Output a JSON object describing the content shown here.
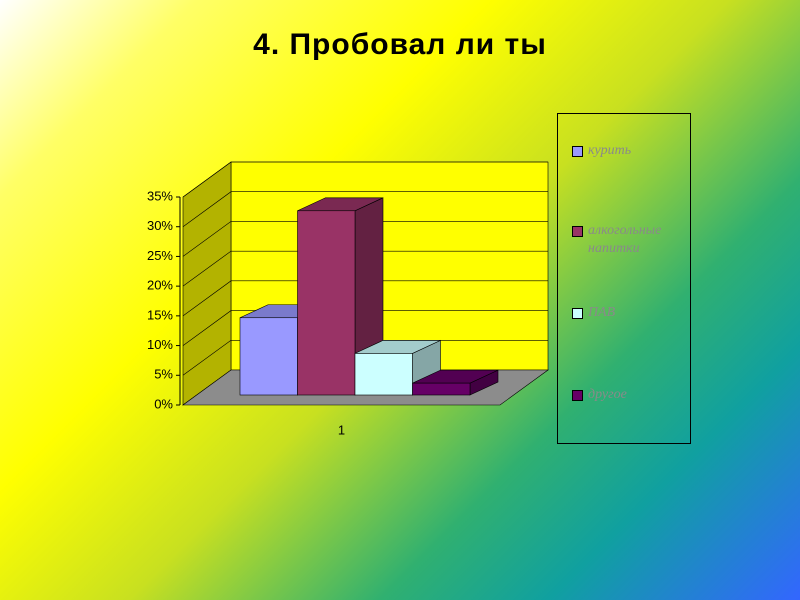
{
  "chart_data": {
    "type": "bar3d",
    "title": "4. Пробовал ли ты",
    "categories": [
      "1"
    ],
    "series": [
      {
        "name": "курить",
        "color": "#9999ff",
        "values": [
          13
        ]
      },
      {
        "name": "алкогольные напитки",
        "color": "#993366",
        "values": [
          31
        ]
      },
      {
        "name": "ПАВ",
        "color": "#ccffff",
        "values": [
          7
        ]
      },
      {
        "name": "другое",
        "color": "#660066",
        "values": [
          2
        ]
      }
    ],
    "ylim": [
      0,
      35
    ],
    "yticks": [
      {
        "value": 0,
        "label": "0%"
      },
      {
        "value": 5,
        "label": "5%"
      },
      {
        "value": 10,
        "label": "10%"
      },
      {
        "value": 15,
        "label": "15%"
      },
      {
        "value": 20,
        "label": "20%"
      },
      {
        "value": 25,
        "label": "25%"
      },
      {
        "value": 30,
        "label": "30%"
      },
      {
        "value": 35,
        "label": "35%"
      }
    ],
    "grid": true,
    "legend": "right"
  }
}
